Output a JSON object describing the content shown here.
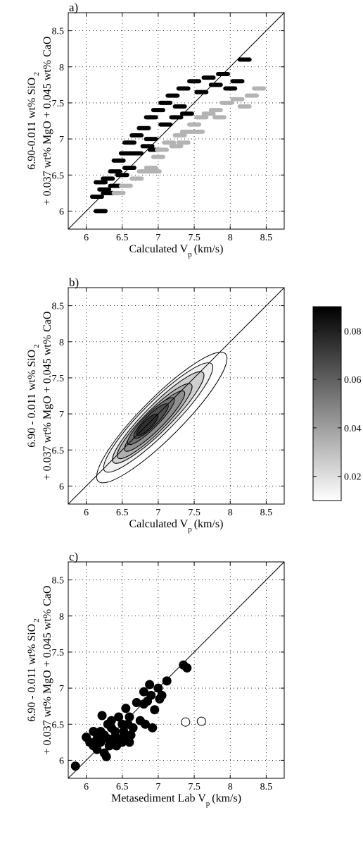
{
  "figure": {
    "panels": [
      {
        "panel_label": "a)",
        "ylabel_line1": "6.90-0.011 wt% SiO",
        "ylabel_line1_sub": "2",
        "ylabel_line2": "+ 0.037 wt% MgO + 0.045 wt% CaO",
        "xlabel_main": "Calculated V",
        "xlabel_sub": "p",
        "xlabel_unit": "(km/s)"
      },
      {
        "panel_label": "b)",
        "ylabel_line1": "6.90 - 0.011 wt% SiO",
        "ylabel_line1_sub": "2",
        "ylabel_line2": "+ 0.037 wt% MgO + 0.045 wt% CaO",
        "xlabel_main": "Calculated V",
        "xlabel_sub": "p",
        "xlabel_unit": "(km/s)"
      },
      {
        "panel_label": "c)",
        "ylabel_line1": "6.90 - 0.011 wt% SiO",
        "ylabel_line1_sub": "2",
        "ylabel_line2": "+ 0.037 wt% MgO + 0.045 wt% CaO",
        "xlabel_main": "Metasediment Lab V",
        "xlabel_sub": "p",
        "xlabel_unit": "(km/s)"
      }
    ]
  },
  "chart_data": [
    {
      "type": "scatter",
      "panel_label": "a)",
      "xlim": [
        5.75,
        8.75
      ],
      "ylim": [
        5.75,
        8.75
      ],
      "xticks": [
        6,
        6.5,
        7,
        7.5,
        8,
        8.5
      ],
      "yticks": [
        6,
        6.5,
        7,
        7.5,
        8,
        8.5
      ],
      "xtick_labels": [
        "6",
        "6.5",
        "7",
        "7.5",
        "8",
        "8.5"
      ],
      "ytick_labels": [
        "6",
        "6.5",
        "7",
        "7.5",
        "8",
        "8.5"
      ],
      "grid": "dotted",
      "reference_line": "1:1",
      "marker": "dash",
      "series": [
        {
          "color": "#000000",
          "points": [
            [
              6.2,
              6.0
            ],
            [
              6.15,
              6.2
            ],
            [
              6.25,
              6.3
            ],
            [
              6.3,
              6.45
            ],
            [
              6.4,
              6.55
            ],
            [
              6.45,
              6.7
            ],
            [
              6.55,
              6.8
            ],
            [
              6.6,
              6.95
            ],
            [
              6.7,
              7.05
            ],
            [
              6.8,
              7.15
            ],
            [
              6.9,
              7.3
            ],
            [
              7.0,
              7.4
            ],
            [
              7.1,
              7.5
            ],
            [
              7.2,
              7.6
            ],
            [
              7.35,
              7.7
            ],
            [
              7.5,
              7.8
            ],
            [
              7.7,
              7.85
            ],
            [
              7.9,
              7.9
            ],
            [
              8.2,
              8.1
            ],
            [
              6.3,
              6.25
            ],
            [
              6.5,
              6.5
            ],
            [
              6.7,
              6.8
            ],
            [
              6.9,
              7.0
            ],
            [
              7.1,
              7.2
            ],
            [
              7.3,
              7.45
            ],
            [
              7.6,
              7.65
            ],
            [
              7.8,
              7.75
            ],
            [
              8.0,
              7.7
            ],
            [
              8.1,
              7.8
            ],
            [
              6.2,
              6.4
            ],
            [
              6.6,
              6.6
            ],
            [
              6.95,
              6.85
            ],
            [
              7.4,
              7.35
            ],
            [
              6.4,
              6.35
            ],
            [
              6.85,
              6.9
            ],
            [
              7.25,
              7.3
            ]
          ]
        },
        {
          "color": "#b3b3b3",
          "points": [
            [
              6.45,
              6.25
            ],
            [
              6.55,
              6.35
            ],
            [
              6.7,
              6.45
            ],
            [
              6.8,
              6.55
            ],
            [
              6.9,
              6.6
            ],
            [
              7.0,
              6.75
            ],
            [
              7.05,
              6.85
            ],
            [
              7.15,
              6.95
            ],
            [
              7.3,
              7.05
            ],
            [
              7.4,
              7.1
            ],
            [
              7.5,
              7.2
            ],
            [
              7.6,
              7.3
            ],
            [
              7.7,
              7.35
            ],
            [
              7.8,
              7.4
            ],
            [
              7.95,
              7.5
            ],
            [
              8.1,
              7.55
            ],
            [
              8.3,
              7.6
            ],
            [
              8.4,
              7.7
            ],
            [
              7.25,
              6.9
            ],
            [
              7.55,
              7.1
            ],
            [
              7.85,
              7.3
            ],
            [
              8.2,
              7.45
            ],
            [
              6.95,
              6.55
            ],
            [
              7.35,
              6.95
            ]
          ]
        }
      ]
    },
    {
      "type": "heatmap",
      "panel_label": "b)",
      "xlim": [
        5.75,
        8.75
      ],
      "ylim": [
        5.75,
        8.75
      ],
      "xticks": [
        6,
        6.5,
        7,
        7.5,
        8,
        8.5
      ],
      "yticks": [
        6,
        6.5,
        7,
        7.5,
        8,
        8.5
      ],
      "xtick_labels": [
        "6",
        "6.5",
        "7",
        "7.5",
        "8",
        "8.5"
      ],
      "ytick_labels": [
        "6",
        "6.5",
        "7",
        "7.5",
        "8",
        "8.5"
      ],
      "grid": "dotted",
      "reference_line": "1:1",
      "contours": [
        {
          "level": 0.005,
          "center": [
            7.05,
            6.95
          ],
          "semi_major": 1.25,
          "semi_minor": 0.28
        },
        {
          "level": 0.015,
          "center": [
            7.0,
            6.95
          ],
          "semi_major": 1.05,
          "semi_minor": 0.22
        },
        {
          "level": 0.025,
          "center": [
            7.0,
            6.95
          ],
          "semi_major": 0.88,
          "semi_minor": 0.18
        },
        {
          "level": 0.035,
          "center": [
            6.95,
            6.9
          ],
          "semi_major": 0.72,
          "semi_minor": 0.15
        },
        {
          "level": 0.045,
          "center": [
            6.95,
            6.9
          ],
          "semi_major": 0.58,
          "semi_minor": 0.12
        },
        {
          "level": 0.055,
          "center": [
            6.9,
            6.9
          ],
          "semi_major": 0.45,
          "semi_minor": 0.1
        },
        {
          "level": 0.065,
          "center": [
            6.9,
            6.9
          ],
          "semi_major": 0.33,
          "semi_minor": 0.08
        },
        {
          "level": 0.075,
          "center": [
            6.85,
            6.85
          ],
          "semi_major": 0.2,
          "semi_minor": 0.06
        }
      ],
      "colorbar": {
        "min": 0.01,
        "max": 0.09,
        "ticks": [
          0.02,
          0.04,
          0.06,
          0.08
        ],
        "tick_labels": [
          "0.02",
          "0.04",
          "0.06",
          "0.08"
        ],
        "colors": [
          "#ffffff",
          "#000000"
        ]
      }
    },
    {
      "type": "scatter",
      "panel_label": "c)",
      "xlim": [
        5.75,
        8.75
      ],
      "ylim": [
        5.75,
        8.75
      ],
      "xticks": [
        6,
        6.5,
        7,
        7.5,
        8,
        8.5
      ],
      "yticks": [
        6,
        6.5,
        7,
        7.5,
        8,
        8.5
      ],
      "xtick_labels": [
        "6",
        "6.5",
        "7",
        "7.5",
        "8",
        "8.5"
      ],
      "ytick_labels": [
        "6",
        "6.5",
        "7",
        "7.5",
        "8",
        "8.5"
      ],
      "grid": "dotted",
      "reference_line": "1:1",
      "series": [
        {
          "marker": "filled-circle",
          "points": [
            [
              5.85,
              5.92
            ],
            [
              6.0,
              6.32
            ],
            [
              6.05,
              6.25
            ],
            [
              6.1,
              6.4
            ],
            [
              6.1,
              6.2
            ],
            [
              6.15,
              6.3
            ],
            [
              6.15,
              6.15
            ],
            [
              6.2,
              6.4
            ],
            [
              6.2,
              6.25
            ],
            [
              6.22,
              6.62
            ],
            [
              6.25,
              6.35
            ],
            [
              6.25,
              6.1
            ],
            [
              6.28,
              6.05
            ],
            [
              6.3,
              6.5
            ],
            [
              6.3,
              6.3
            ],
            [
              6.32,
              6.2
            ],
            [
              6.35,
              6.45
            ],
            [
              6.35,
              6.55
            ],
            [
              6.38,
              6.3
            ],
            [
              6.4,
              6.4
            ],
            [
              6.42,
              6.2
            ],
            [
              6.45,
              6.6
            ],
            [
              6.45,
              6.3
            ],
            [
              6.5,
              6.5
            ],
            [
              6.5,
              6.25
            ],
            [
              6.52,
              6.4
            ],
            [
              6.55,
              6.72
            ],
            [
              6.55,
              6.3
            ],
            [
              6.58,
              6.5
            ],
            [
              6.6,
              6.6
            ],
            [
              6.62,
              6.35
            ],
            [
              6.65,
              6.45
            ],
            [
              6.7,
              6.8
            ],
            [
              6.75,
              6.55
            ],
            [
              6.8,
              6.95
            ],
            [
              6.82,
              6.5
            ],
            [
              6.85,
              6.82
            ],
            [
              6.88,
              7.05
            ],
            [
              6.9,
              6.9
            ],
            [
              6.92,
              6.45
            ],
            [
              6.95,
              6.7
            ],
            [
              7.0,
              7.0
            ],
            [
              7.02,
              6.85
            ],
            [
              7.05,
              6.9
            ],
            [
              7.12,
              7.1
            ],
            [
              7.35,
              7.32
            ],
            [
              7.4,
              7.28
            ],
            [
              6.4,
              6.25
            ],
            [
              6.6,
              6.25
            ],
            [
              6.8,
              6.78
            ]
          ]
        },
        {
          "marker": "open-circle",
          "points": [
            [
              7.38,
              6.53
            ],
            [
              7.6,
              6.54
            ]
          ]
        }
      ]
    }
  ]
}
